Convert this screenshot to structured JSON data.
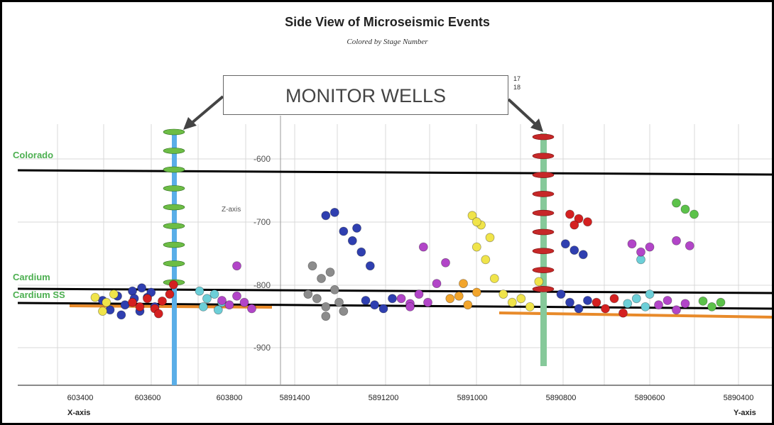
{
  "chart_data": {
    "type": "scatter",
    "title": "Side View of Microseismic Events",
    "subtitle": "Colored by Stage Number",
    "xlabel": "X-axis",
    "xlabel2": "Y-axis",
    "zlabel": "Z-axis",
    "x_ticks": [
      "603400",
      "603600",
      "603800"
    ],
    "y_ticks": [
      "5891400",
      "5891200",
      "5891000",
      "5890800",
      "5890600",
      "5890400"
    ],
    "z_ticks": [
      "-600",
      "-700",
      "-800",
      "-900"
    ],
    "legend_fragment": [
      "17",
      "18"
    ],
    "callout": "MONITOR WELLS",
    "formations": [
      {
        "name": "Colorado",
        "color": "#4caf50"
      },
      {
        "name": "Cardium",
        "color": "#4caf50"
      },
      {
        "name": "Cardium SS",
        "color": "#4caf50"
      }
    ],
    "wells": [
      {
        "name": "left monitor well",
        "color": "#5aaee8",
        "marker_color": "#6dbd45"
      },
      {
        "name": "right monitor well",
        "color": "#86c99a",
        "marker_color": "#c62828"
      }
    ],
    "stage_colors": {
      "blue": "#2f3fb0",
      "red": "#d42020",
      "yellow": "#f0e44a",
      "cyan": "#6ccfd8",
      "magenta": "#b245c8",
      "green": "#5cc24a",
      "gray": "#8c8c8c",
      "orange": "#f2a52c",
      "pink": "#d06ad0"
    },
    "series": [
      {
        "color": "blue",
        "points": [
          [
            603460,
            -825
          ],
          [
            603480,
            -840
          ],
          [
            603500,
            -818
          ],
          [
            603520,
            -832
          ],
          [
            603540,
            -810
          ],
          [
            603560,
            -842
          ],
          [
            603580,
            -820
          ],
          [
            603600,
            -835
          ],
          [
            603510,
            -848
          ],
          [
            603545,
            -822
          ],
          [
            603565,
            -805
          ],
          [
            603590,
            -812
          ]
        ]
      },
      {
        "color": "red",
        "points": [
          [
            603540,
            -828
          ],
          [
            603560,
            -835
          ],
          [
            603580,
            -822
          ],
          [
            603600,
            -838
          ],
          [
            603620,
            -826
          ],
          [
            603640,
            -815
          ],
          [
            603650,
            -800
          ],
          [
            603610,
            -846
          ]
        ]
      },
      {
        "color": "yellow",
        "points": [
          [
            603440,
            -820
          ],
          [
            603470,
            -828
          ],
          [
            603490,
            -815
          ],
          [
            603460,
            -842
          ]
        ]
      },
      {
        "color": "cyan",
        "points": [
          [
            603720,
            -810
          ],
          [
            603740,
            -822
          ],
          [
            603760,
            -815
          ],
          [
            603780,
            -828
          ],
          [
            603730,
            -835
          ],
          [
            603770,
            -840
          ]
        ]
      },
      {
        "color": "magenta",
        "points": [
          [
            603780,
            -825
          ],
          [
            603800,
            -832
          ],
          [
            603820,
            -818
          ],
          [
            603840,
            -828
          ],
          [
            603860,
            -838
          ],
          [
            603820,
            -770
          ]
        ]
      },
      {
        "color": "gray",
        "points": [
          [
            5891370,
            -815
          ],
          [
            5891350,
            -822
          ],
          [
            5891330,
            -835
          ],
          [
            5891310,
            -808
          ],
          [
            5891300,
            -828
          ],
          [
            5891340,
            -790
          ],
          [
            5891360,
            -770
          ],
          [
            5891320,
            -780
          ],
          [
            5891290,
            -842
          ],
          [
            5891330,
            -850
          ]
        ]
      },
      {
        "color": "blue",
        "points": [
          [
            5891330,
            -690
          ],
          [
            5891310,
            -685
          ],
          [
            5891290,
            -715
          ],
          [
            5891270,
            -730
          ],
          [
            5891250,
            -748
          ],
          [
            5891230,
            -770
          ],
          [
            5891260,
            -710
          ],
          [
            5891240,
            -825
          ],
          [
            5891220,
            -832
          ],
          [
            5891200,
            -838
          ],
          [
            5891180,
            -822
          ]
        ]
      },
      {
        "color": "magenta",
        "points": [
          [
            5891160,
            -822
          ],
          [
            5891140,
            -830
          ],
          [
            5891120,
            -815
          ],
          [
            5891100,
            -828
          ],
          [
            5891080,
            -798
          ],
          [
            5891060,
            -765
          ],
          [
            5891110,
            -740
          ],
          [
            5891140,
            -835
          ]
        ]
      },
      {
        "color": "orange",
        "points": [
          [
            5891050,
            -822
          ],
          [
            5891030,
            -818
          ],
          [
            5891010,
            -832
          ],
          [
            5890990,
            -812
          ],
          [
            5891020,
            -798
          ]
        ]
      },
      {
        "color": "yellow",
        "points": [
          [
            5891000,
            -690
          ],
          [
            5890980,
            -705
          ],
          [
            5890960,
            -725
          ],
          [
            5890990,
            -740
          ],
          [
            5890970,
            -760
          ],
          [
            5890950,
            -790
          ],
          [
            5890930,
            -815
          ],
          [
            5890910,
            -828
          ],
          [
            5890890,
            -822
          ],
          [
            5890870,
            -835
          ],
          [
            5890990,
            -700
          ],
          [
            5890850,
            -795
          ]
        ]
      },
      {
        "color": "red",
        "points": [
          [
            5890780,
            -688
          ],
          [
            5890760,
            -695
          ],
          [
            5890740,
            -700
          ],
          [
            5890770,
            -705
          ],
          [
            5890720,
            -828
          ],
          [
            5890700,
            -838
          ],
          [
            5890680,
            -822
          ],
          [
            5890660,
            -845
          ]
        ]
      },
      {
        "color": "blue",
        "points": [
          [
            5890790,
            -735
          ],
          [
            5890770,
            -745
          ],
          [
            5890750,
            -752
          ],
          [
            5890800,
            -815
          ],
          [
            5890780,
            -828
          ],
          [
            5890760,
            -838
          ],
          [
            5890740,
            -825
          ]
        ]
      },
      {
        "color": "cyan",
        "points": [
          [
            5890650,
            -830
          ],
          [
            5890630,
            -822
          ],
          [
            5890610,
            -835
          ],
          [
            5890600,
            -815
          ],
          [
            5890620,
            -760
          ]
        ]
      },
      {
        "color": "magenta",
        "points": [
          [
            5890640,
            -735
          ],
          [
            5890620,
            -748
          ],
          [
            5890600,
            -740
          ],
          [
            5890580,
            -832
          ],
          [
            5890560,
            -825
          ],
          [
            5890540,
            -840
          ],
          [
            5890520,
            -830
          ],
          [
            5890540,
            -730
          ],
          [
            5890510,
            -738
          ]
        ]
      },
      {
        "color": "green",
        "points": [
          [
            5890540,
            -670
          ],
          [
            5890520,
            -680
          ],
          [
            5890500,
            -688
          ],
          [
            5890480,
            -826
          ],
          [
            5890460,
            -835
          ],
          [
            5890440,
            -828
          ]
        ]
      }
    ],
    "grid": true
  }
}
